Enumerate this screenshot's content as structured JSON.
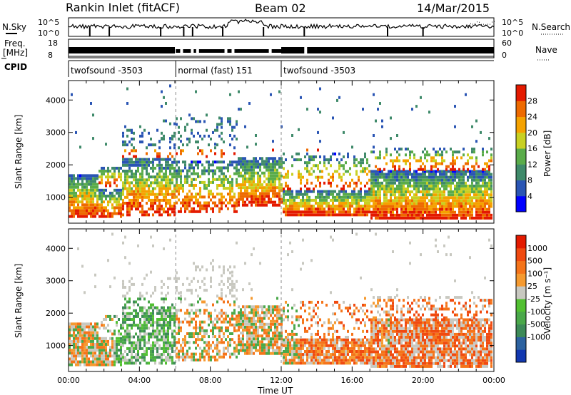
{
  "header": {
    "radar": "Rankin Inlet (fitACF)",
    "beam": "Beam 02",
    "date": "14/Mar/2015"
  },
  "status_panels": {
    "nsky_label": "N.Sky",
    "nsky_ticks": [
      "10^5",
      "10^0"
    ],
    "nsearch_label": "N.Search",
    "nsearch_ticks": [
      "10^5",
      "10^0"
    ],
    "freq_label_line1": "Freq.",
    "freq_label_line2": "[MHz]",
    "freq_ticks": [
      "18",
      "8"
    ],
    "nave_label": "Nave",
    "nave_ticks": [
      "60",
      "0"
    ],
    "cpid_label": "CPID",
    "cpid_segments": [
      {
        "label": "twofsound -3503",
        "start_hour": 0,
        "end_hour": 6.05
      },
      {
        "label": "normal (fast) 151",
        "start_hour": 6.05,
        "end_hour": 12.0
      },
      {
        "label": "twofsound -3503",
        "start_hour": 12.0,
        "end_hour": 24
      }
    ]
  },
  "chart_data": [
    {
      "type": "heatmap",
      "name": "power-panel",
      "ylabel": "Slant Range [km]",
      "yticks": [
        "1000",
        "2000",
        "3000",
        "4000"
      ],
      "ylim": [
        200,
        4600
      ],
      "xlim": [
        0,
        24
      ],
      "colorbar": {
        "label": "Power [dB]",
        "tick_labels": [
          "4",
          "8",
          "12",
          "16",
          "20",
          "24",
          "28"
        ],
        "colors": [
          "#0000ff",
          "#2a55b4",
          "#3f8a6a",
          "#5aac4a",
          "#c8d022",
          "#f5a200",
          "#ee6a00",
          "#e41a00"
        ]
      }
    },
    {
      "type": "heatmap",
      "name": "velocity-panel",
      "ylabel": "Slant Range [km]",
      "yticks": [
        "1000",
        "2000",
        "3000",
        "4000"
      ],
      "ylim": [
        200,
        4600
      ],
      "xlim": [
        0,
        24
      ],
      "xticks": [
        "00:00",
        "04:00",
        "08:00",
        "12:00",
        "16:00",
        "20:00",
        "00:00"
      ],
      "xlabel": "Time UT",
      "colorbar": {
        "label": "Velocity [m s⁻¹]",
        "tick_labels": [
          "1000",
          "500",
          "100",
          "25",
          "-25",
          "-100",
          "-500",
          "-1000"
        ],
        "colors": [
          "#1238b0",
          "#2d62a0",
          "#3d8a58",
          "#4aa84a",
          "#52c032",
          "#c8c8c0",
          "#f59a30",
          "#f5741a",
          "#f04a10",
          "#e31a00"
        ]
      }
    }
  ]
}
